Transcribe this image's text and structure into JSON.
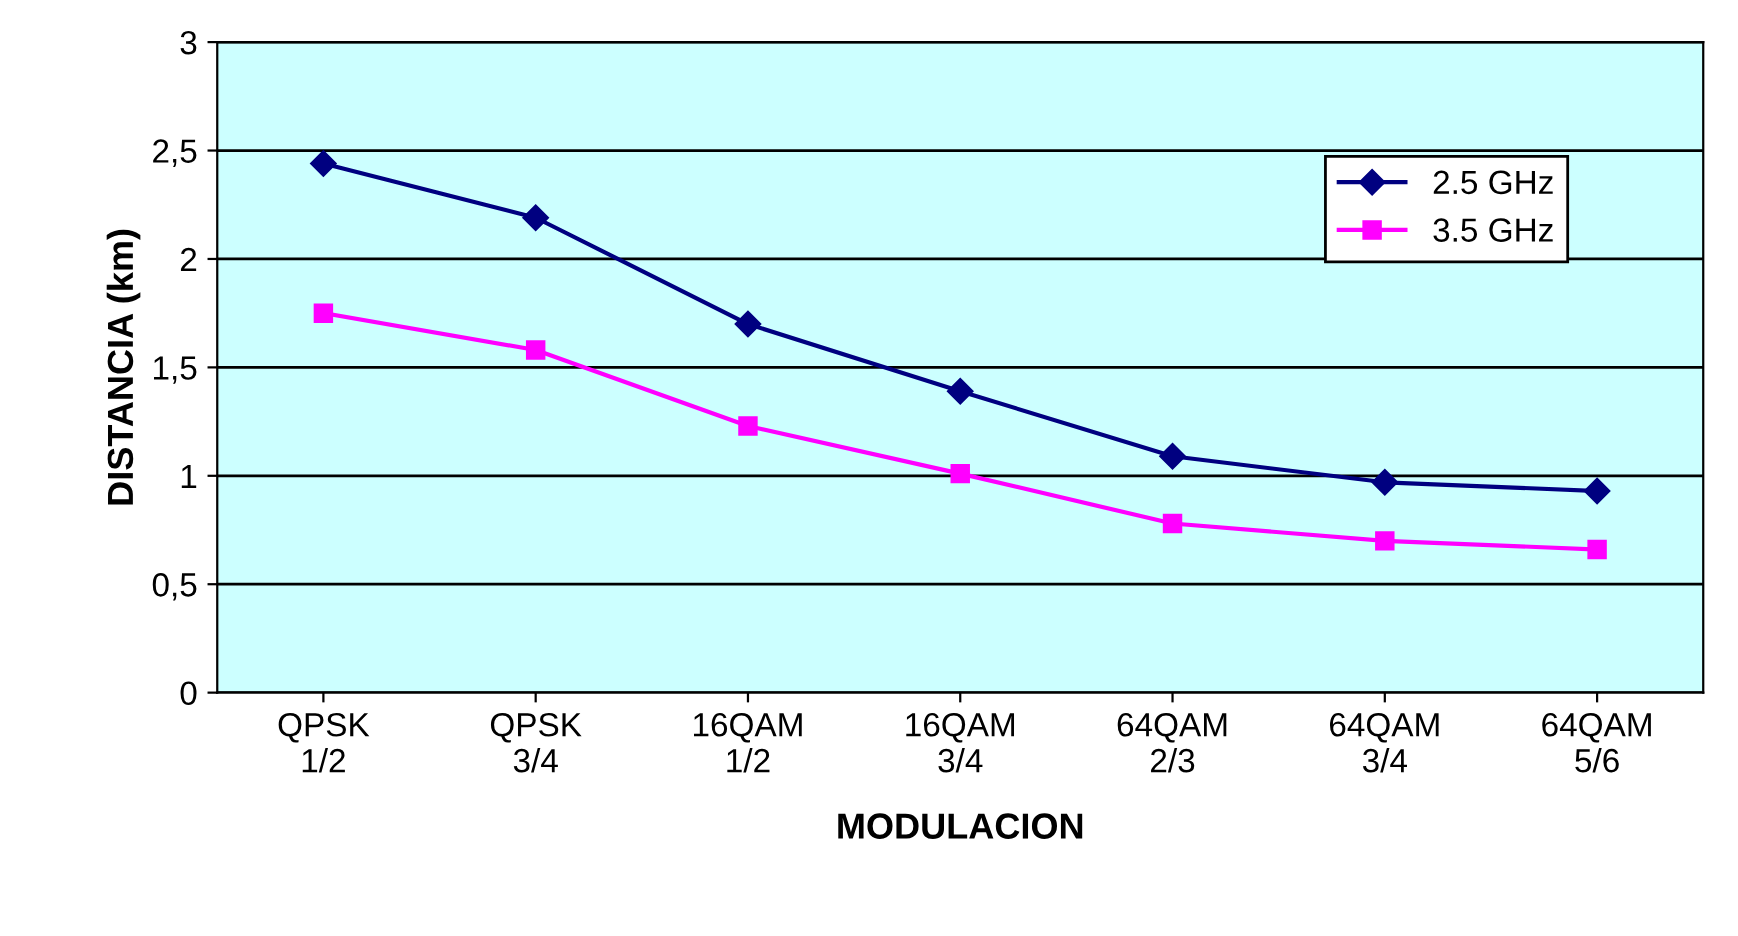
{
  "chart_data": {
    "type": "line",
    "xlabel": "MODULACION",
    "ylabel": "DISTANCIA (km)",
    "categories": [
      "QPSK\n1/2",
      "QPSK\n3/4",
      "16QAM\n1/2",
      "16QAM\n3/4",
      "64QAM\n2/3",
      "64QAM\n3/4",
      "64QAM\n5/6"
    ],
    "series": [
      {
        "name": "2.5 GHz",
        "color": "#000080",
        "marker": "diamond",
        "values": [
          2.44,
          2.19,
          1.7,
          1.39,
          1.09,
          0.97,
          0.93
        ]
      },
      {
        "name": "3.5 GHz",
        "color": "#ff00ff",
        "marker": "square",
        "values": [
          1.75,
          1.58,
          1.23,
          1.01,
          0.78,
          0.7,
          0.66
        ]
      }
    ],
    "ylim": [
      0,
      3
    ],
    "yticks": [
      0,
      {
        "value": 0.5,
        "label": "0,5"
      },
      1,
      {
        "value": 1.5,
        "label": "1,5"
      },
      2,
      {
        "value": 2.5,
        "label": "2,5"
      },
      3
    ],
    "grid": "y",
    "legend": "top right"
  }
}
